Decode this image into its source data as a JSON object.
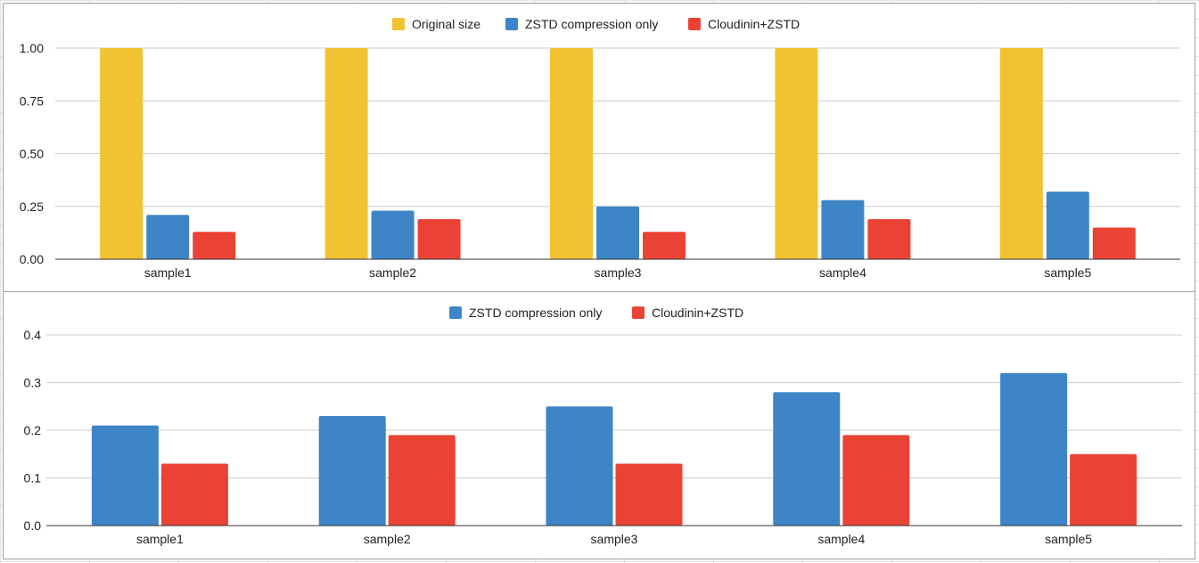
{
  "chart_data": [
    {
      "type": "bar",
      "categories": [
        "sample1",
        "sample2",
        "sample3",
        "sample4",
        "sample5"
      ],
      "series": [
        {
          "name": "Original size",
          "color": "#f1c232",
          "values": [
            1.0,
            1.0,
            1.0,
            1.0,
            1.0
          ]
        },
        {
          "name": "ZSTD compression only",
          "color": "#3d85c6",
          "values": [
            0.21,
            0.23,
            0.25,
            0.28,
            0.32
          ]
        },
        {
          "name": "Cloudinin+ZSTD",
          "color": "#ea4335",
          "values": [
            0.13,
            0.19,
            0.13,
            0.19,
            0.15
          ]
        }
      ],
      "yticks": [
        "0.00",
        "0.25",
        "0.50",
        "0.75",
        "1.00"
      ],
      "ylim": [
        0,
        1
      ],
      "grid": true,
      "legend_position": "top"
    },
    {
      "type": "bar",
      "categories": [
        "sample1",
        "sample2",
        "sample3",
        "sample4",
        "sample5"
      ],
      "series": [
        {
          "name": "ZSTD compression only",
          "color": "#3d85c6",
          "values": [
            0.21,
            0.23,
            0.25,
            0.28,
            0.32
          ]
        },
        {
          "name": "Cloudinin+ZSTD",
          "color": "#ea4335",
          "values": [
            0.13,
            0.19,
            0.13,
            0.19,
            0.15
          ]
        }
      ],
      "yticks": [
        "0.0",
        "0.1",
        "0.2",
        "0.3",
        "0.4"
      ],
      "ylim": [
        0,
        0.4
      ],
      "grid": true,
      "legend_position": "top"
    }
  ]
}
